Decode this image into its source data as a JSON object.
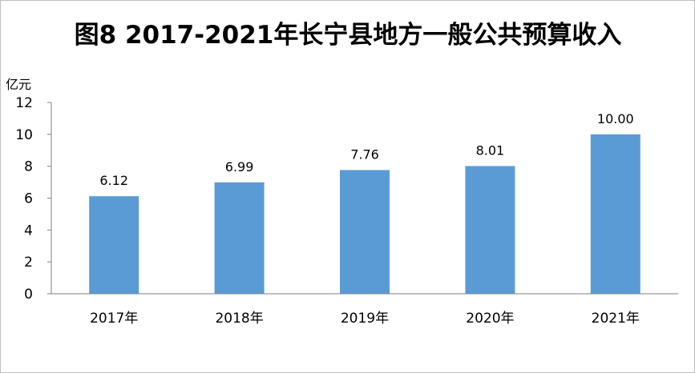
{
  "chart_data": {
    "type": "bar",
    "title": "图8  2017-2021年长宁县地方一般公共预算收入",
    "unit_label": "亿元",
    "categories": [
      "2017年",
      "2018年",
      "2019年",
      "2020年",
      "2021年"
    ],
    "values": [
      6.12,
      6.99,
      7.76,
      8.01,
      10.0
    ],
    "data_labels": [
      "6.12",
      "6.99",
      "7.76",
      "8.01",
      "10.00"
    ],
    "yticks": [
      "0",
      "2",
      "4",
      "6",
      "8",
      "10",
      "12"
    ],
    "ylim": [
      0,
      12
    ],
    "grid": false,
    "legend": "none",
    "bar_color": "#5b9bd5"
  }
}
